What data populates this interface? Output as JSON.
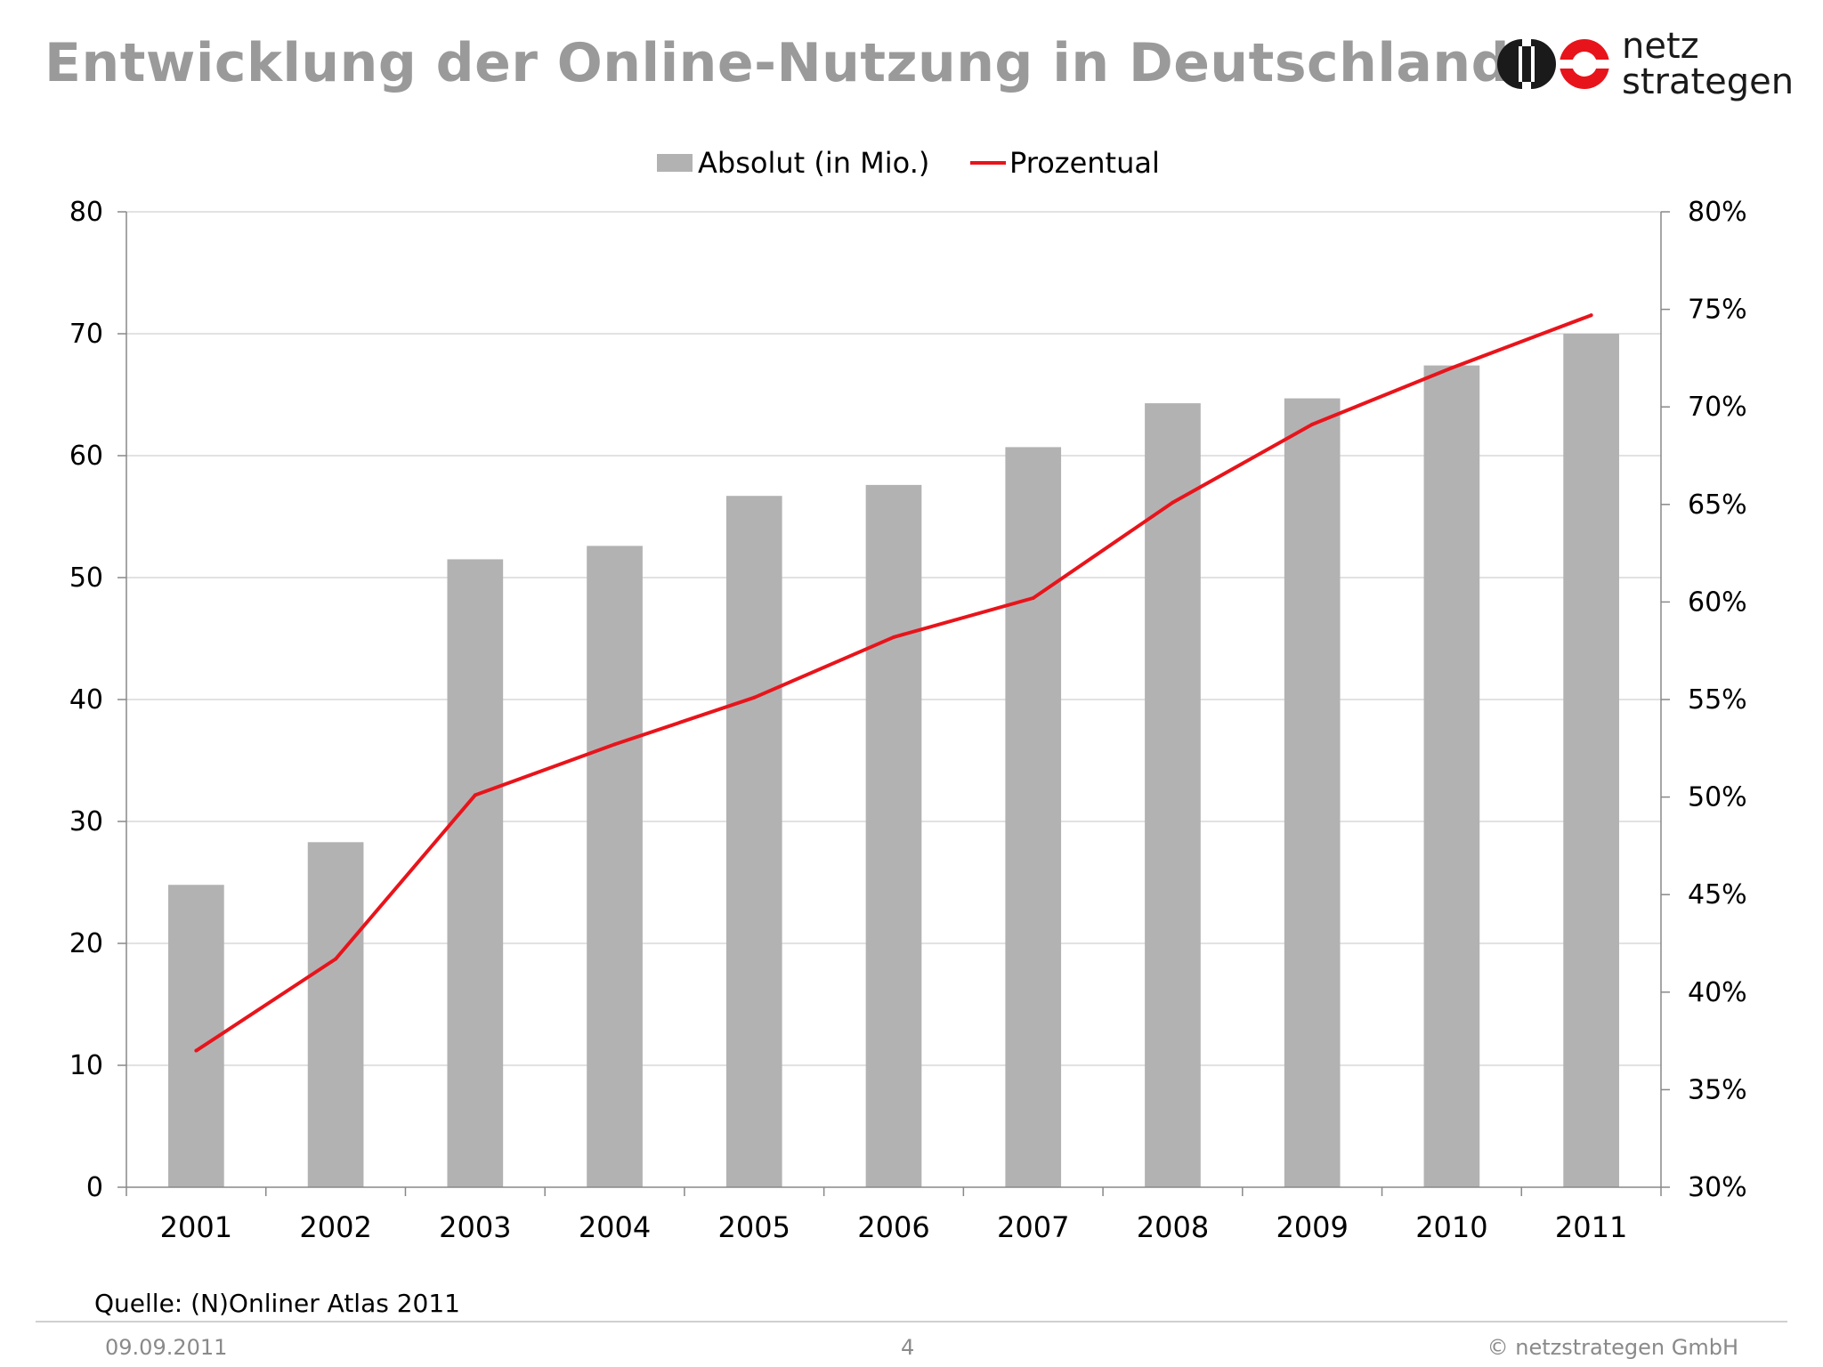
{
  "header": {
    "title": "Entwicklung der Online-Nutzung in Deutschland",
    "logo_line1": "netz",
    "logo_line2": "strategen"
  },
  "chart_data": {
    "type": "bar",
    "categories": [
      "2001",
      "2002",
      "2003",
      "2004",
      "2005",
      "2006",
      "2007",
      "2008",
      "2009",
      "2010",
      "2011"
    ],
    "series": [
      {
        "name": "Absolut (in Mio.)",
        "type": "bar",
        "axis": "left",
        "color": "#b3b2b3",
        "values": [
          24.8,
          28.3,
          51.5,
          52.6,
          56.7,
          57.6,
          60.7,
          64.3,
          64.7,
          67.4,
          70.0
        ]
      },
      {
        "name": "Prozentual",
        "type": "line",
        "axis": "right",
        "color": "#e8141b",
        "values": [
          37.0,
          41.7,
          50.1,
          52.7,
          55.1,
          58.2,
          60.2,
          65.1,
          69.1,
          72.0,
          74.7
        ]
      }
    ],
    "y_left": {
      "min": 0,
      "max": 80,
      "ticks": [
        "0",
        "10",
        "20",
        "30",
        "40",
        "50",
        "60",
        "70",
        "80"
      ]
    },
    "y_right": {
      "min": 30,
      "max": 80,
      "ticks": [
        "30%",
        "35%",
        "40%",
        "45%",
        "50%",
        "55%",
        "60%",
        "65%",
        "70%",
        "75%",
        "80%"
      ]
    },
    "legend_position": "top-center",
    "grid": true
  },
  "source": "Quelle: (N)Onliner Atlas 2011",
  "footer": {
    "date": "09.09.2011",
    "page": "4",
    "copyright": "© netzstrategen GmbH"
  },
  "colors": {
    "title": "#9a9a9a",
    "bars": "#b3b2b3",
    "line": "#e8141b",
    "logo_red": "#e8141b",
    "logo_dark": "#1a1a1a"
  }
}
